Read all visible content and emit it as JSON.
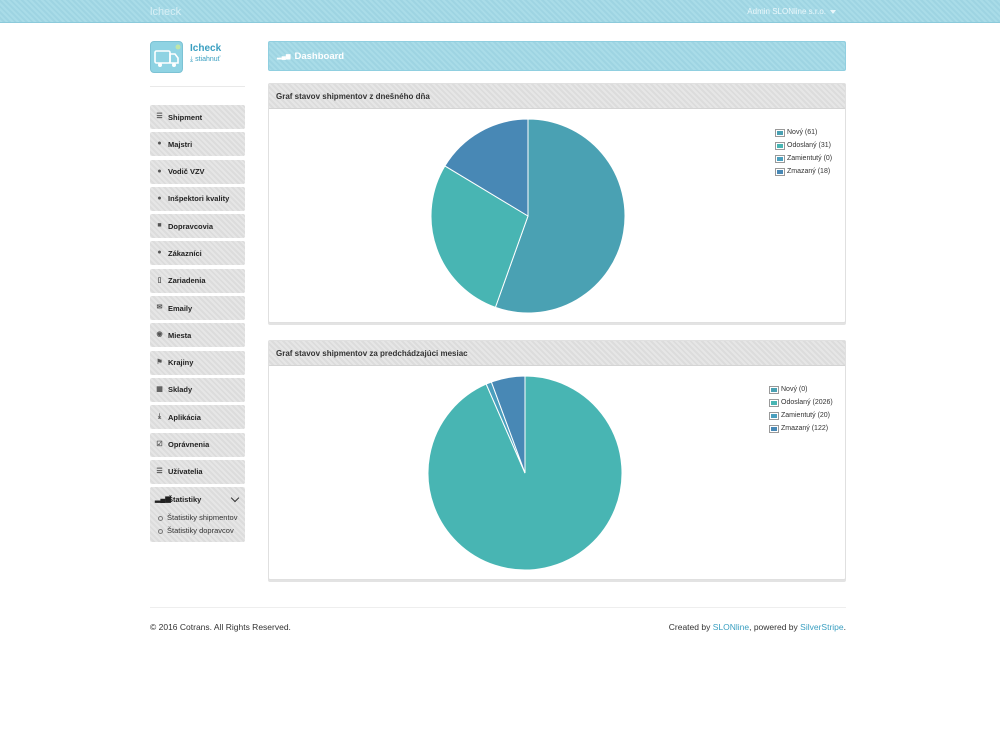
{
  "app": {
    "brand": "lcheck",
    "user_menu": "Admin SLONline s.r.o.",
    "app_name": "Icheck",
    "download_label": "stiahnuť"
  },
  "sidebar": {
    "items": [
      {
        "label": "Shipment",
        "icon": "list-icon"
      },
      {
        "label": "Majstri",
        "icon": "user-icon"
      },
      {
        "label": "Vodič VZV",
        "icon": "user-icon"
      },
      {
        "label": "Inšpektori kvality",
        "icon": "user-icon"
      },
      {
        "label": "Dopravcovia",
        "icon": "truck-icon"
      },
      {
        "label": "Zákazníci",
        "icon": "user-icon"
      },
      {
        "label": "Zariadenia",
        "icon": "mobile-icon"
      },
      {
        "label": "Emaily",
        "icon": "envelope-icon"
      },
      {
        "label": "Miesta",
        "icon": "globe-icon"
      },
      {
        "label": "Krajiny",
        "icon": "flag-icon"
      },
      {
        "label": "Sklady",
        "icon": "grid-icon"
      },
      {
        "label": "Aplikácia",
        "icon": "download-icon"
      },
      {
        "label": "Oprávnenia",
        "icon": "checkbox-icon"
      },
      {
        "label": "Užívatelia",
        "icon": "list-icon"
      }
    ],
    "stats": {
      "label": "Štatistiky",
      "sub": [
        "Štatistiky shipmentov",
        "Štatistiky dopravcov"
      ]
    }
  },
  "dashboard": {
    "title": "Dashboard"
  },
  "chart_data": [
    {
      "type": "pie",
      "title": "Graf stavov shipmentov z dnešného dňa",
      "series": [
        {
          "label": "Nový (61)",
          "value": 61,
          "color": "#4aa1b3"
        },
        {
          "label": "Odoslaný (31)",
          "value": 31,
          "color": "#48b5b3"
        },
        {
          "label": "Zamientutý (0)",
          "value": 0,
          "color": "#4a9fbe"
        },
        {
          "label": "Zmazaný (18)",
          "value": 18,
          "color": "#4888b5"
        }
      ],
      "legend": "top-right"
    },
    {
      "type": "pie",
      "title": "Graf stavov shipmentov za predchádzajúci mesiac",
      "series": [
        {
          "label": "Nový (0)",
          "value": 0,
          "color": "#4aa1b3"
        },
        {
          "label": "Odoslaný (2026)",
          "value": 2026,
          "color": "#48b5b3"
        },
        {
          "label": "Zamientutý (20)",
          "value": 20,
          "color": "#4a9fbe"
        },
        {
          "label": "Zmazaný (122)",
          "value": 122,
          "color": "#4888b5"
        }
      ],
      "legend": "top-right"
    }
  ],
  "footer": {
    "copyright": "© 2016 Cotrans. All Rights Reserved.",
    "created_by": "Created by",
    "slonline": "SLONline",
    "powered_by": ", powered by",
    "silverstripe": "SilverStripe",
    "end": "."
  }
}
